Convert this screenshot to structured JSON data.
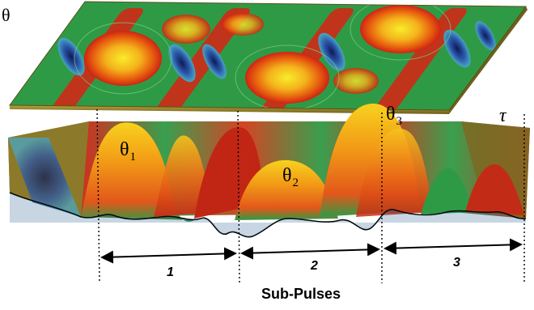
{
  "labels": {
    "theta_axis": "θ",
    "tau_axis": "τ",
    "peaks": [
      {
        "symbol": "θ",
        "index": "1"
      },
      {
        "symbol": "θ",
        "index": "2"
      },
      {
        "symbol": "θ",
        "index": "3"
      }
    ],
    "segments": [
      "1",
      "2",
      "3"
    ],
    "caption": "Sub-Pulses"
  },
  "colors": {
    "hot_peak": "#f5e21a",
    "orange": "#f08a12",
    "red": "#d42616",
    "green": "#35a244",
    "dark_green": "#1f7a32",
    "cold": "#1a2f7a",
    "plane_edge": "#8c7a2a"
  }
}
